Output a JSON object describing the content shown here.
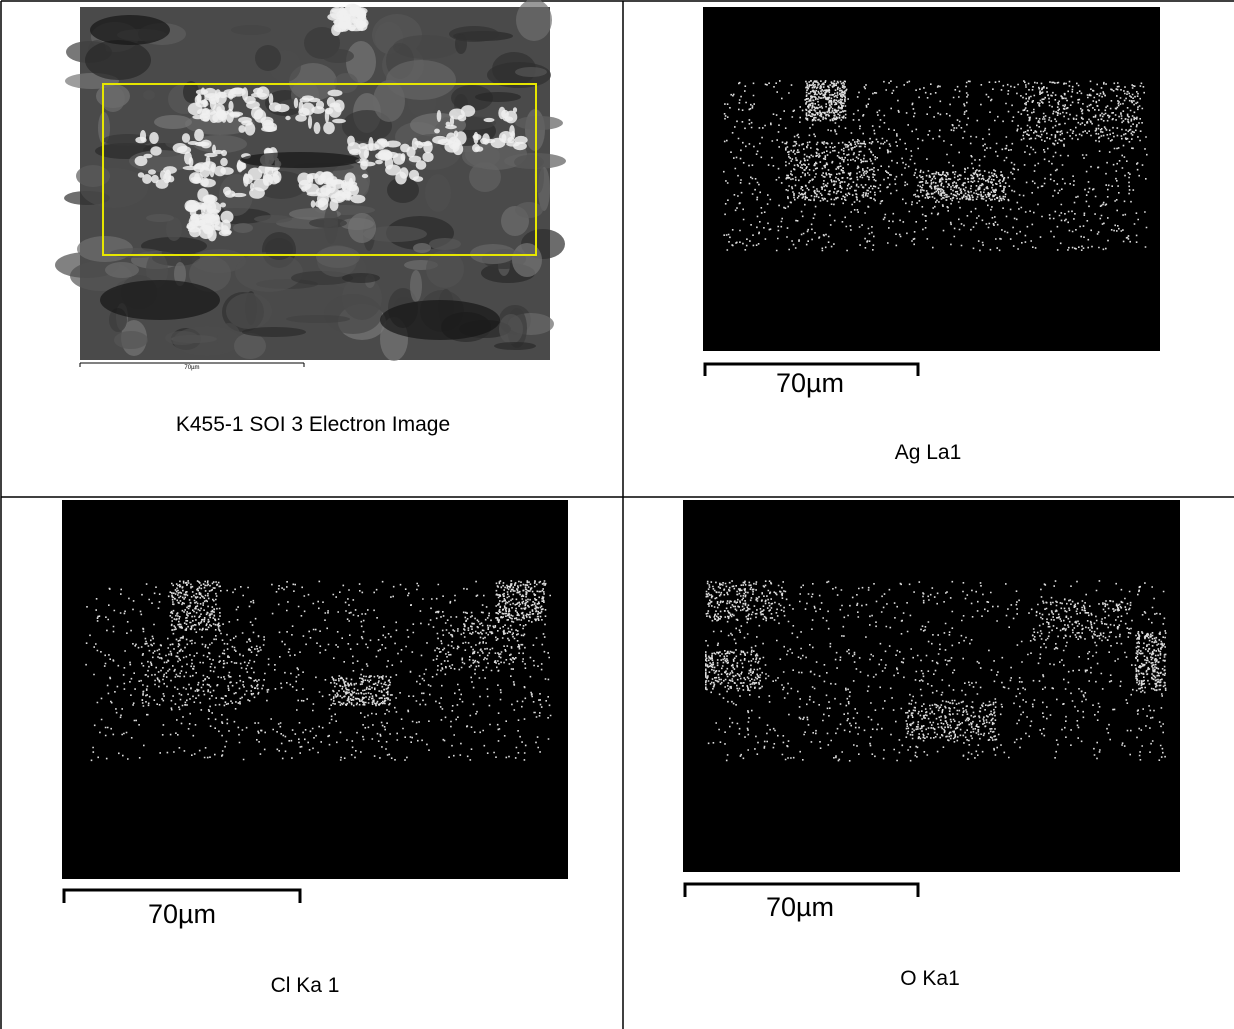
{
  "cells": [
    {
      "caption": "K455-1 SOI 3 Electron Image",
      "scale_label": "70µm"
    },
    {
      "caption": "Ag La1",
      "scale_label": "70µm"
    },
    {
      "caption": "Cl Ka 1",
      "scale_label": "70µm"
    },
    {
      "caption": "O Ka1",
      "scale_label": "70µm"
    }
  ]
}
